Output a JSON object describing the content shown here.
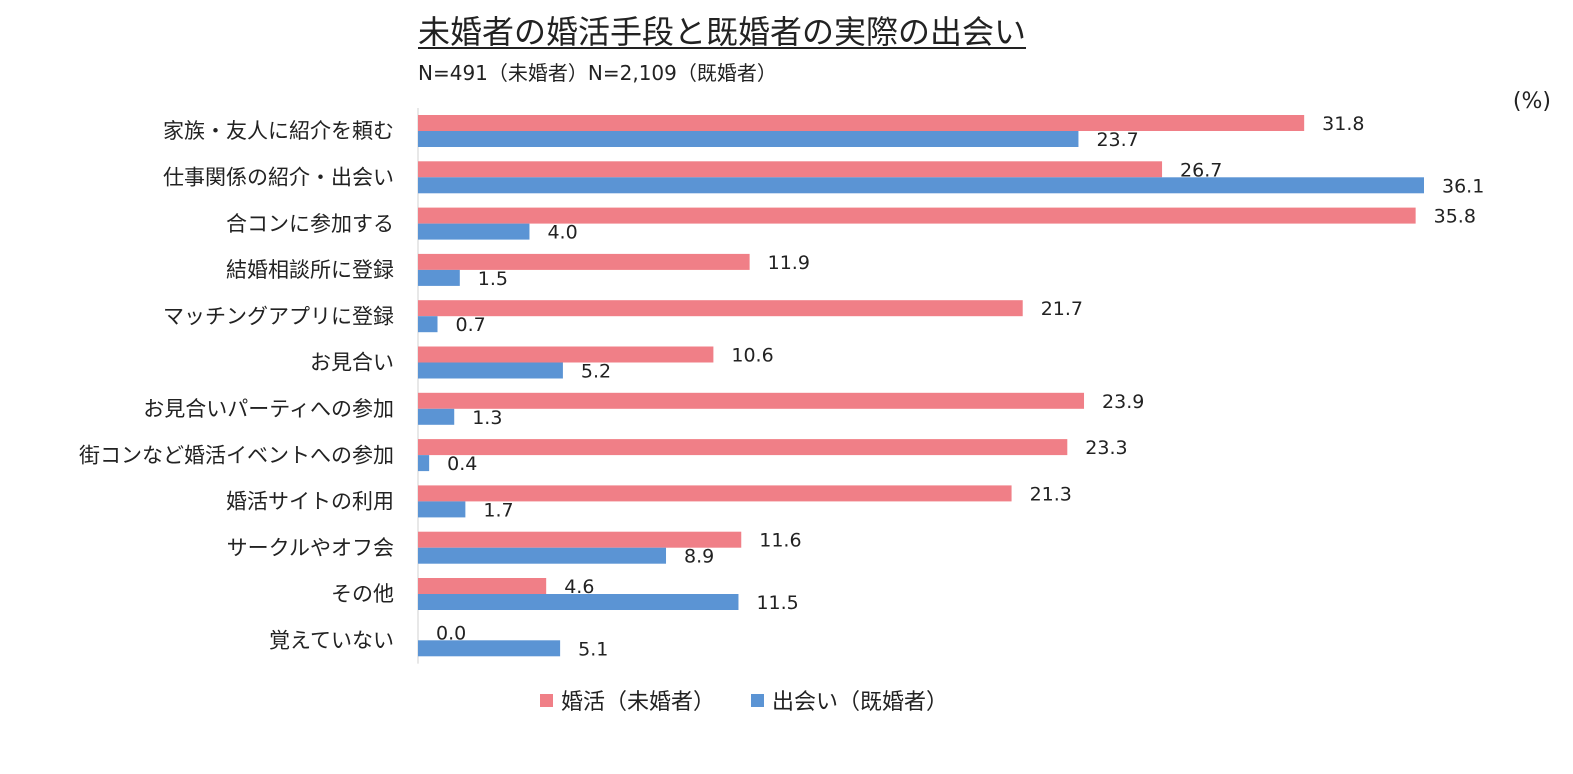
{
  "chart_data": {
    "type": "bar",
    "orientation": "horizontal",
    "title": "未婚者の婚活手段と既婚者の実際の出会い",
    "subtitle": "N=491（未婚者）N=2,109（既婚者）",
    "unit_label": "(%)",
    "categories": [
      "家族・友人に紹介を頼む",
      "仕事関係の紹介・出会い",
      "合コンに参加する",
      "結婚相談所に登録",
      "マッチングアプリに登録",
      "お見合い",
      "お見合いパーティへの参加",
      "街コンなど婚活イベントへの参加",
      "婚活サイトの利用",
      "サークルやオフ会",
      "その他",
      "覚えていない"
    ],
    "series": [
      {
        "name": "婚活（未婚者）",
        "color": "#F07F87",
        "values": [
          31.8,
          26.7,
          35.8,
          11.9,
          21.7,
          10.6,
          23.9,
          23.3,
          21.3,
          11.6,
          4.6,
          0.0
        ]
      },
      {
        "name": "出会い（既婚者）",
        "color": "#5B94D4",
        "values": [
          23.7,
          36.1,
          4.0,
          1.5,
          0.7,
          5.2,
          1.3,
          0.4,
          1.7,
          8.9,
          11.5,
          5.1
        ]
      }
    ],
    "xlim": [
      0,
      36.1
    ],
    "grid": false,
    "legend_position": "bottom"
  }
}
